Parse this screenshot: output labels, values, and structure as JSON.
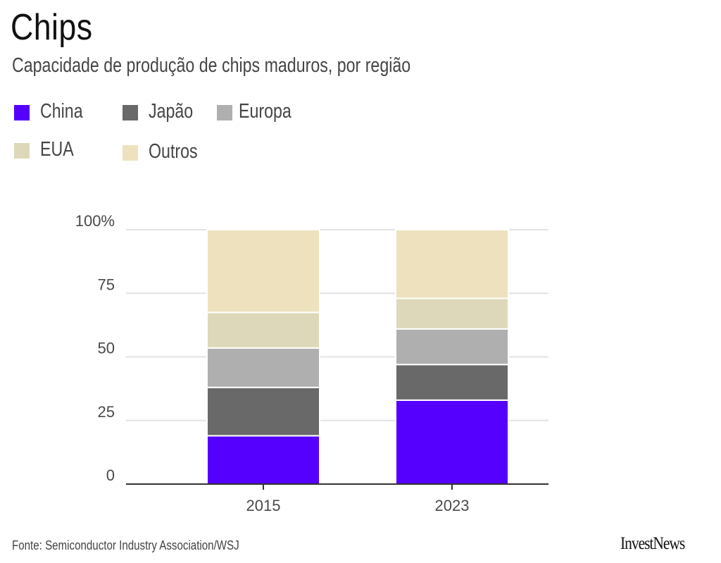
{
  "header": {
    "title": "Chips",
    "subtitle": "Capacidade de produção de chips maduros, por região"
  },
  "legend": {
    "items": [
      {
        "label": "China",
        "color": "#5500ff"
      },
      {
        "label": "Japão",
        "color": "#696969"
      },
      {
        "label": "Europa",
        "color": "#afafaf"
      },
      {
        "label": "EUA",
        "color": "#ddd8b9"
      },
      {
        "label": "Outros",
        "color": "#ede2bd"
      }
    ]
  },
  "chart_data": {
    "type": "bar",
    "stacked": true,
    "title": "Chips",
    "subtitle": "Capacidade de produção de chips maduros, por região",
    "categories": [
      "2015",
      "2023"
    ],
    "series": [
      {
        "name": "China",
        "color": "#5500ff",
        "values": [
          19,
          33
        ]
      },
      {
        "name": "Japão",
        "color": "#696969",
        "values": [
          19,
          14
        ]
      },
      {
        "name": "Europa",
        "color": "#afafaf",
        "values": [
          15.5,
          14
        ]
      },
      {
        "name": "EUA",
        "color": "#ddd8b9",
        "values": [
          14,
          12
        ]
      },
      {
        "name": "Outros",
        "color": "#ede2bd",
        "values": [
          32.5,
          27
        ]
      }
    ],
    "xlabel": "",
    "ylabel": "",
    "ylim": [
      0,
      100
    ],
    "yticks": [
      0,
      25,
      50,
      75,
      100
    ],
    "ytick_labels": [
      "0",
      "25",
      "50",
      "75",
      "100%"
    ],
    "grid": true,
    "legend_position": "top-left"
  },
  "footer": {
    "source": "Fonte: Semiconductor Industry Association/WSJ",
    "brand": "InvestNews"
  }
}
